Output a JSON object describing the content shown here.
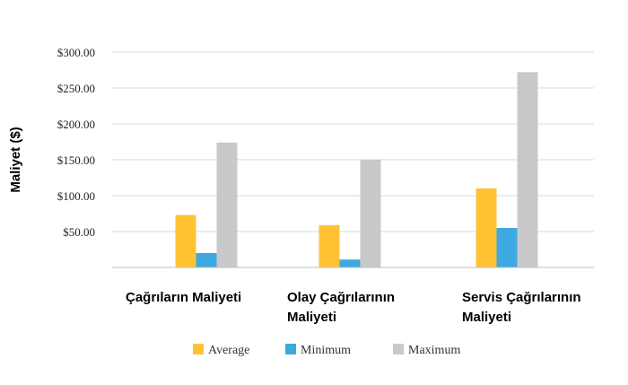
{
  "chart_data": {
    "type": "bar",
    "ylabel": "Maliyet ($)",
    "ylim": [
      0,
      300
    ],
    "yticks": [
      {
        "value": 50,
        "label": "$50.00"
      },
      {
        "value": 100,
        "label": "$100.00"
      },
      {
        "value": 150,
        "label": "$150.00"
      },
      {
        "value": 200,
        "label": "$200.00"
      },
      {
        "value": 250,
        "label": "$250.00"
      },
      {
        "value": 300,
        "label": "$300.00"
      }
    ],
    "grid": true,
    "legend_position": "bottom",
    "categories": [
      [
        "Çağrıların Maliyeti"
      ],
      [
        "Olay Çağrılarının",
        "Maliyeti"
      ],
      [
        "Servis Çağrılarının",
        "Maliyeti"
      ]
    ],
    "series": [
      {
        "name": "Average",
        "color": "#FFC233",
        "values": [
          73,
          59,
          110
        ]
      },
      {
        "name": "Minimum",
        "color": "#3DA9E0",
        "values": [
          20,
          11,
          55
        ]
      },
      {
        "name": "Maximum",
        "color": "#C9C9CB",
        "values": [
          174,
          150,
          272
        ]
      }
    ]
  }
}
